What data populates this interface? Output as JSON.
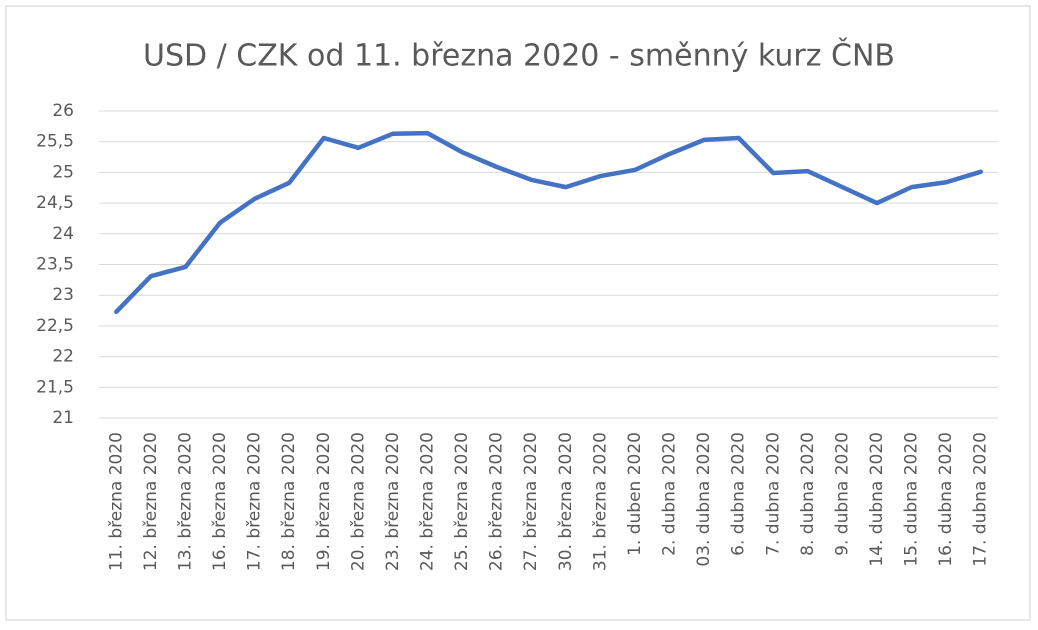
{
  "chart_data": {
    "type": "line",
    "title": "USD / CZK od 11. března 2020 - směnný kurz ČNB",
    "categories": [
      "11. března 2020",
      "12. března 2020",
      "13. března 2020",
      "16. března 2020",
      "17. března 2020",
      "18. března 2020",
      "19. března 2020",
      "20. března 2020",
      "23. března 2020",
      "24. března 2020",
      "25. března 2020",
      "26. března 2020",
      "27. března 2020",
      "30. března 2020",
      "31. března 2020",
      "1. duben 2020",
      "2. dubna 2020",
      "03. dubna 2020",
      "6. dubna 2020",
      "7. dubna 2020",
      "8. dubna 2020",
      "9. dubna 2020",
      "14. dubna 2020",
      "15. dubna 2020",
      "16. dubna 2020",
      "17. dubna 2020"
    ],
    "series": [
      {
        "color": "#4472c4",
        "values": [
          22.73,
          23.31,
          23.46,
          24.18,
          24.57,
          24.83,
          25.56,
          25.4,
          25.63,
          25.64,
          25.33,
          25.09,
          24.88,
          24.76,
          24.94,
          25.04,
          25.3,
          25.53,
          25.56,
          24.99,
          25.02,
          24.76,
          24.5,
          24.76,
          24.84,
          25.01
        ]
      }
    ],
    "ylim": [
      21,
      26
    ],
    "yticks": [
      21,
      {
        "value": 21.5,
        "label": "21,5"
      },
      22,
      {
        "value": 22.5,
        "label": "22,5"
      },
      23,
      {
        "value": 23.5,
        "label": "23,5"
      },
      24,
      {
        "value": 24.5,
        "label": "24,5"
      },
      25,
      {
        "value": 25.5,
        "label": "25,5"
      },
      26
    ],
    "grid": true
  }
}
